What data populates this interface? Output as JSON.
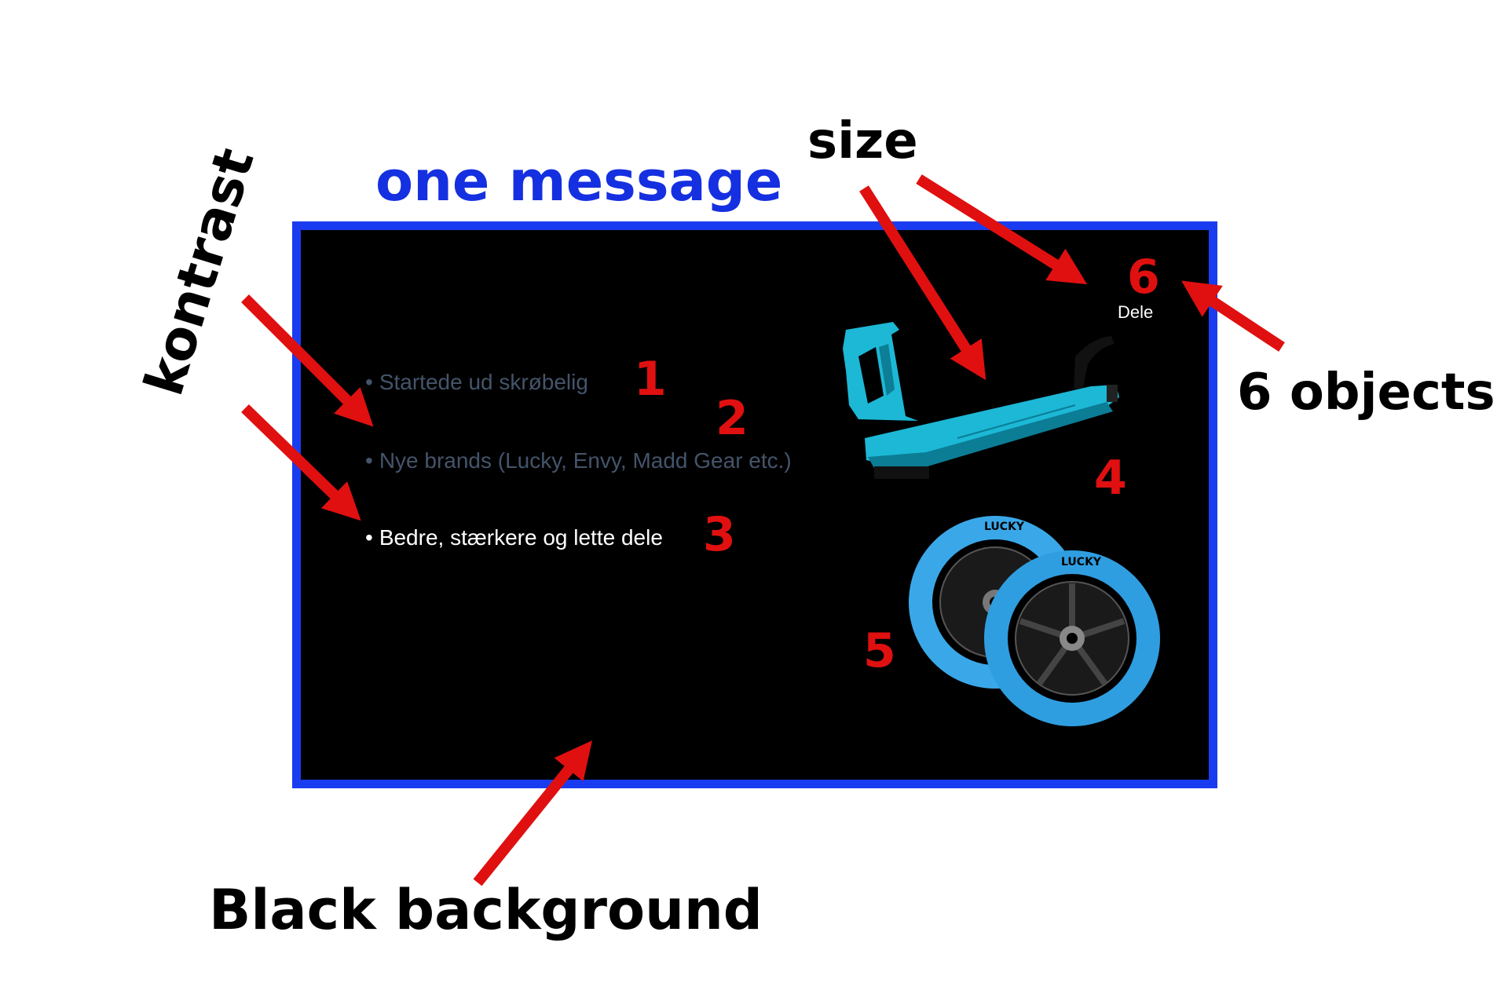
{
  "annotations": {
    "one_message": "one message",
    "size": "size",
    "six_objects": "6 objects",
    "kontrast": "kontrast",
    "black_background": "Black background"
  },
  "slide": {
    "bullets": [
      {
        "text": "Startede ud skrøbelig",
        "number": "1"
      },
      {
        "text": "Nye brands (Lucky, Envy, Madd Gear etc.)",
        "number": "2"
      },
      {
        "text": "Bedre, stærkere og lette dele",
        "number": "3"
      }
    ],
    "bullet_symbol": "•",
    "deck_number": "4",
    "wheels_number": "5",
    "dele_number": "6",
    "dele_label": "Dele",
    "wheel_brand": "LUCKY"
  },
  "colors": {
    "frame": "#1a3cf0",
    "title": "#1530e0",
    "arrow": "#e01010",
    "dim_text": "#44546a",
    "deck": "#1cb8d6",
    "wheel": "#3aa8e8"
  }
}
